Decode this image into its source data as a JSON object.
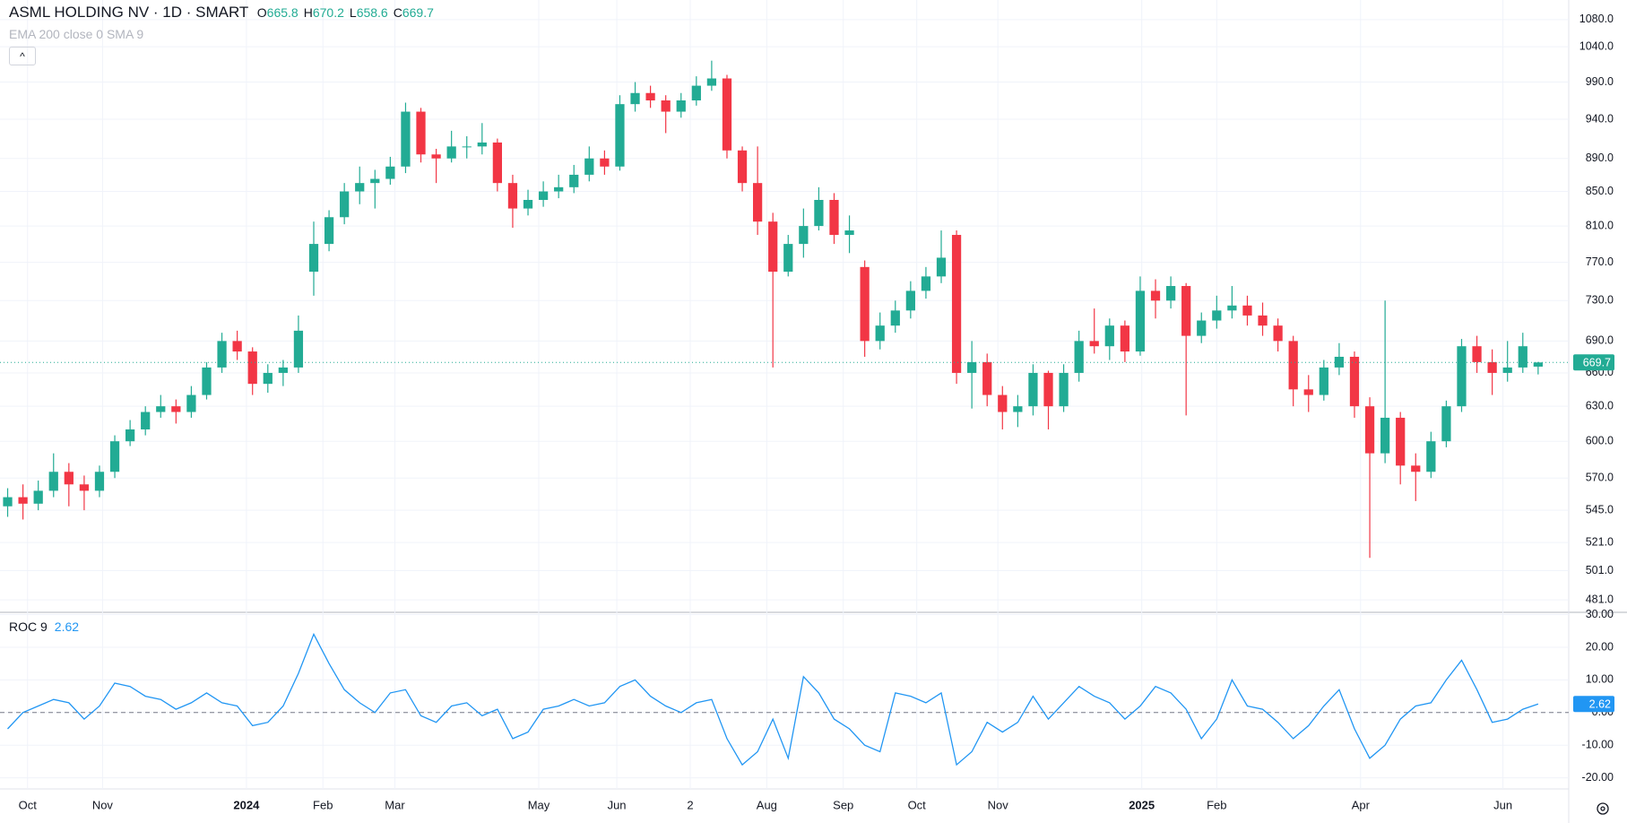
{
  "chart_data": [
    {
      "type": "candlestick",
      "title": "ASML HOLDING NV · 1D · SMART",
      "ohlc_labels": [
        "O",
        "H",
        "L",
        "C"
      ],
      "indicator": "EMA 200 close 0 SMA 9",
      "up_color": "#22ab94",
      "down_color": "#f23645",
      "log_scale": true,
      "grid": true,
      "ylim": [
        472.7,
        1110
      ],
      "yticks": [
        {
          "value": 481,
          "label": "481.0"
        },
        {
          "value": 501,
          "label": "501.0"
        },
        {
          "value": 521,
          "label": "521.0"
        },
        {
          "value": 545,
          "label": "545.0"
        },
        {
          "value": 570,
          "label": "570.0"
        },
        {
          "value": 600,
          "label": "600.0"
        },
        {
          "value": 630,
          "label": "630.0"
        },
        {
          "value": 660,
          "label": "660.0"
        },
        {
          "value": 690,
          "label": "690.0"
        },
        {
          "value": 730,
          "label": "730.0"
        },
        {
          "value": 770,
          "label": "770.0"
        },
        {
          "value": 810,
          "label": "810.0"
        },
        {
          "value": 850,
          "label": "850.0"
        },
        {
          "value": 890,
          "label": "890.0"
        },
        {
          "value": 940,
          "label": "940.0"
        },
        {
          "value": 990,
          "label": "990.0"
        },
        {
          "value": 1040,
          "label": "1040.0"
        },
        {
          "value": 1080,
          "label": "1080.0"
        }
      ],
      "ohlc": [
        [
          548,
          562,
          540,
          555
        ],
        [
          555,
          565,
          538,
          550
        ],
        [
          550,
          568,
          545,
          560
        ],
        [
          560,
          590,
          555,
          575
        ],
        [
          575,
          582,
          548,
          565
        ],
        [
          565,
          572,
          545,
          560
        ],
        [
          560,
          580,
          555,
          575
        ],
        [
          575,
          605,
          570,
          600
        ],
        [
          600,
          618,
          596,
          610
        ],
        [
          610,
          630,
          605,
          625
        ],
        [
          625,
          640,
          620,
          630
        ],
        [
          630,
          636,
          615,
          625
        ],
        [
          625,
          648,
          620,
          640
        ],
        [
          640,
          670,
          636,
          665
        ],
        [
          665,
          698,
          660,
          690
        ],
        [
          690,
          700,
          672,
          680
        ],
        [
          680,
          684,
          640,
          650
        ],
        [
          650,
          668,
          642,
          660
        ],
        [
          660,
          672,
          648,
          665
        ],
        [
          665,
          715,
          660,
          700
        ],
        [
          760,
          815,
          735,
          790
        ],
        [
          790,
          828,
          782,
          820
        ],
        [
          820,
          860,
          812,
          850
        ],
        [
          850,
          880,
          835,
          860
        ],
        [
          860,
          876,
          830,
          865
        ],
        [
          865,
          892,
          858,
          880
        ],
        [
          880,
          962,
          872,
          950
        ],
        [
          950,
          955,
          885,
          895
        ],
        [
          895,
          902,
          860,
          890
        ],
        [
          890,
          925,
          885,
          905
        ],
        [
          905,
          918,
          890,
          905
        ],
        [
          905,
          935,
          895,
          910
        ],
        [
          910,
          915,
          850,
          860
        ],
        [
          860,
          870,
          808,
          830
        ],
        [
          830,
          852,
          822,
          840
        ],
        [
          840,
          862,
          832,
          850
        ],
        [
          850,
          870,
          842,
          855
        ],
        [
          855,
          882,
          848,
          870
        ],
        [
          870,
          905,
          862,
          890
        ],
        [
          890,
          900,
          870,
          880
        ],
        [
          880,
          972,
          875,
          960
        ],
        [
          960,
          990,
          950,
          975
        ],
        [
          975,
          985,
          955,
          965
        ],
        [
          965,
          972,
          922,
          950
        ],
        [
          950,
          975,
          942,
          965
        ],
        [
          965,
          998,
          958,
          985
        ],
        [
          985,
          1020,
          978,
          995
        ],
        [
          995,
          1000,
          890,
          900
        ],
        [
          900,
          905,
          850,
          860
        ],
        [
          860,
          905,
          800,
          815
        ],
        [
          815,
          825,
          665,
          760
        ],
        [
          760,
          800,
          755,
          790
        ],
        [
          790,
          830,
          775,
          810
        ],
        [
          810,
          855,
          805,
          840
        ],
        [
          840,
          848,
          790,
          800
        ],
        [
          800,
          822,
          780,
          805
        ],
        [
          765,
          772,
          675,
          690
        ],
        [
          690,
          718,
          682,
          705
        ],
        [
          705,
          730,
          698,
          720
        ],
        [
          720,
          750,
          712,
          740
        ],
        [
          740,
          765,
          732,
          755
        ],
        [
          755,
          805,
          748,
          775
        ],
        [
          800,
          805,
          650,
          660
        ],
        [
          660,
          690,
          628,
          670
        ],
        [
          670,
          678,
          630,
          640
        ],
        [
          640,
          648,
          610,
          625
        ],
        [
          625,
          640,
          612,
          630
        ],
        [
          630,
          668,
          622,
          660
        ],
        [
          660,
          662,
          610,
          630
        ],
        [
          630,
          668,
          625,
          660
        ],
        [
          660,
          700,
          652,
          690
        ],
        [
          690,
          722,
          678,
          685
        ],
        [
          685,
          712,
          672,
          705
        ],
        [
          705,
          710,
          670,
          680
        ],
        [
          680,
          755,
          676,
          740
        ],
        [
          740,
          752,
          712,
          730
        ],
        [
          730,
          755,
          722,
          745
        ],
        [
          745,
          748,
          622,
          695
        ],
        [
          695,
          718,
          688,
          710
        ],
        [
          710,
          735,
          702,
          720
        ],
        [
          720,
          745,
          712,
          725
        ],
        [
          725,
          735,
          705,
          715
        ],
        [
          715,
          728,
          695,
          705
        ],
        [
          705,
          712,
          680,
          690
        ],
        [
          690,
          695,
          630,
          645
        ],
        [
          645,
          658,
          625,
          640
        ],
        [
          640,
          672,
          635,
          665
        ],
        [
          665,
          688,
          658,
          675
        ],
        [
          675,
          680,
          620,
          630
        ],
        [
          630,
          638,
          510,
          590
        ],
        [
          590,
          730,
          582,
          620
        ],
        [
          620,
          625,
          565,
          580
        ],
        [
          580,
          590,
          552,
          575
        ],
        [
          575,
          608,
          570,
          600
        ],
        [
          600,
          635,
          595,
          630
        ],
        [
          630,
          692,
          625,
          685
        ],
        [
          685,
          695,
          660,
          670
        ],
        [
          670,
          682,
          640,
          660
        ],
        [
          660,
          690,
          652,
          665
        ],
        [
          665,
          698,
          660,
          685
        ],
        [
          665.8,
          670.2,
          658.6,
          669.7
        ]
      ]
    },
    {
      "type": "line",
      "title": "ROC 9",
      "color": "#2196f3",
      "grid": true,
      "reference_line": 0,
      "ylim": [
        -23.4,
        30.7
      ],
      "yticks": [
        {
          "value": 30,
          "label": "30.00"
        },
        {
          "value": 20,
          "label": "20.00"
        },
        {
          "value": 10,
          "label": "10.00"
        },
        {
          "value": 0,
          "label": "0.00"
        },
        {
          "value": -10,
          "label": "-10.00"
        },
        {
          "value": -20,
          "label": "-20.00"
        }
      ],
      "xlim": [
        -0.5,
        102
      ],
      "xticks": [
        {
          "value": 1.3,
          "label": "Oct"
        },
        {
          "value": 6.2,
          "label": "Nov"
        },
        {
          "value": 15.6,
          "label": "2024"
        },
        {
          "value": 20.6,
          "label": "Feb"
        },
        {
          "value": 25.3,
          "label": "Mar"
        },
        {
          "value": 34.7,
          "label": "May"
        },
        {
          "value": 39.8,
          "label": "Jun"
        },
        {
          "value": 44.6,
          "label": "2"
        },
        {
          "value": 49.6,
          "label": "Aug"
        },
        {
          "value": 54.6,
          "label": "Sep"
        },
        {
          "value": 59.4,
          "label": "Oct"
        },
        {
          "value": 64.7,
          "label": "Nov"
        },
        {
          "value": 74.1,
          "label": "2025"
        },
        {
          "value": 79.0,
          "label": "Feb"
        },
        {
          "value": 88.4,
          "label": "Apr"
        },
        {
          "value": 97.7,
          "label": "Jun"
        }
      ],
      "values": [
        -5,
        0,
        2,
        4,
        3,
        -2,
        2,
        9,
        8,
        5,
        4,
        1,
        3,
        6,
        3,
        2,
        -4,
        -3,
        2,
        12,
        24,
        15,
        7,
        3,
        0,
        6,
        7,
        -1,
        -3,
        2,
        3,
        -1,
        1,
        -8,
        -6,
        1,
        2,
        4,
        2,
        3,
        8,
        10,
        5,
        2,
        0,
        3,
        4,
        -8,
        -16,
        -12,
        -2,
        -14,
        11,
        6,
        -2,
        -5,
        -10,
        -12,
        6,
        5,
        3,
        6,
        -16,
        -12,
        -3,
        -6,
        -3,
        5,
        -2,
        3,
        8,
        5,
        3,
        -2,
        2,
        8,
        6,
        1,
        -8,
        -2,
        10,
        2,
        1,
        -3,
        -8,
        -4,
        2,
        7,
        -5,
        -14,
        -10,
        -2,
        2,
        3,
        10,
        16,
        7,
        -3,
        -2,
        1,
        2.62
      ]
    }
  ]
}
